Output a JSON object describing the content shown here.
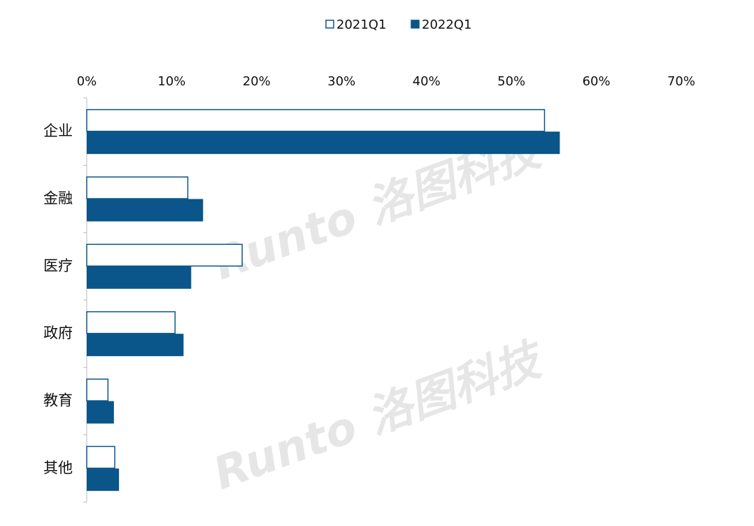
{
  "chart_data": {
    "type": "hbar",
    "categories": [
      "企业",
      "金融",
      "医疗",
      "政府",
      "教育",
      "其他"
    ],
    "series": [
      {
        "name": "2021Q1",
        "color": "#0a5589",
        "filled": false,
        "values": [
          53.9,
          11.9,
          18.3,
          10.4,
          2.5,
          3.3
        ]
      },
      {
        "name": "2022Q1",
        "color": "#0a5589",
        "filled": true,
        "values": [
          55.7,
          13.7,
          12.3,
          11.4,
          3.2,
          3.8
        ]
      }
    ],
    "xlim": [
      0,
      70
    ],
    "xticks": [
      {
        "value": 0,
        "label": "0%"
      },
      {
        "value": 10,
        "label": "10%"
      },
      {
        "value": 20,
        "label": "20%"
      },
      {
        "value": 30,
        "label": "30%"
      },
      {
        "value": 40,
        "label": "40%"
      },
      {
        "value": 50,
        "label": "50%"
      },
      {
        "value": 60,
        "label": "60%"
      },
      {
        "value": 70,
        "label": "70%"
      }
    ],
    "legend": "top",
    "watermark": "Runto 洛图科技"
  }
}
